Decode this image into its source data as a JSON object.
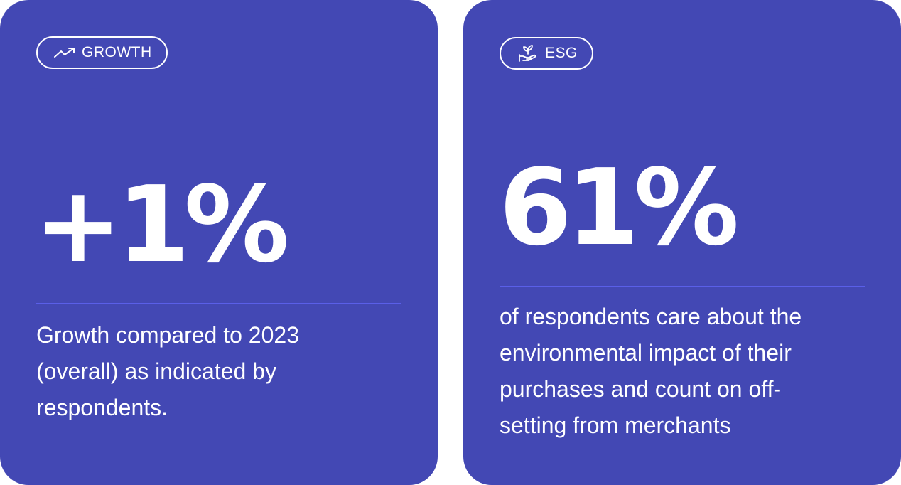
{
  "cards": [
    {
      "tag_label": "GROWTH",
      "tag_icon": "trending-up-icon",
      "stat": "+1%",
      "description": "Growth compared to 2023\n(overall) as  indicated by\nrespondents."
    },
    {
      "tag_label": "ESG",
      "tag_icon": "plant-in-hand-icon",
      "stat": "61%",
      "description": "of respondents care about the\nenvironmental impact of their\npurchases and count on off-\nsetting from merchants"
    }
  ],
  "colors": {
    "card_background": "#4348b4",
    "divider": "#5a5fe8",
    "text": "#ffffff"
  }
}
